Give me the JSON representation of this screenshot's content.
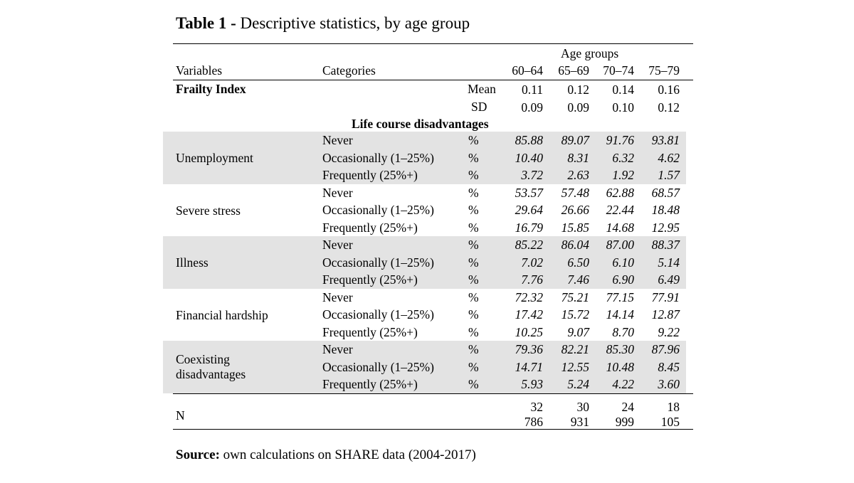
{
  "title": {
    "prefix": "Table 1 -",
    "text": " Descriptive statistics, by age group"
  },
  "header": {
    "group_label": "Age groups",
    "variables": "Variables",
    "categories": "Categories",
    "ages": [
      "60–64",
      "65–69",
      "70–74",
      "75–79"
    ]
  },
  "frailty": {
    "label": "Frailty Index",
    "mean_label": "Mean",
    "sd_label": "SD",
    "mean": [
      "0.11",
      "0.12",
      "0.14",
      "0.16"
    ],
    "sd": [
      "0.09",
      "0.09",
      "0.10",
      "0.12"
    ]
  },
  "section_label": "Life course disadvantages",
  "blocks": [
    {
      "name": "Unemployment",
      "rows": [
        {
          "cat": "Never",
          "unit": "%",
          "vals": [
            "85.88",
            "89.07",
            "91.76",
            "93.81"
          ]
        },
        {
          "cat": "Occasionally (1–25%)",
          "unit": "%",
          "vals": [
            "10.40",
            "8.31",
            "6.32",
            "4.62"
          ]
        },
        {
          "cat": "Frequently (25%+)",
          "unit": "%",
          "vals": [
            "3.72",
            "2.63",
            "1.92",
            "1.57"
          ]
        }
      ]
    },
    {
      "name": "Severe stress",
      "rows": [
        {
          "cat": "Never",
          "unit": "%",
          "vals": [
            "53.57",
            "57.48",
            "62.88",
            "68.57"
          ]
        },
        {
          "cat": "Occasionally (1–25%)",
          "unit": "%",
          "vals": [
            "29.64",
            "26.66",
            "22.44",
            "18.48"
          ]
        },
        {
          "cat": "Frequently (25%+)",
          "unit": "%",
          "vals": [
            "16.79",
            "15.85",
            "14.68",
            "12.95"
          ]
        }
      ]
    },
    {
      "name": "Illness",
      "rows": [
        {
          "cat": "Never",
          "unit": "%",
          "vals": [
            "85.22",
            "86.04",
            "87.00",
            "88.37"
          ]
        },
        {
          "cat": "Occasionally (1–25%)",
          "unit": "%",
          "vals": [
            "7.02",
            "6.50",
            "6.10",
            "5.14"
          ]
        },
        {
          "cat": "Frequently (25%+)",
          "unit": "%",
          "vals": [
            "7.76",
            "7.46",
            "6.90",
            "6.49"
          ]
        }
      ]
    },
    {
      "name": "Financial hardship",
      "rows": [
        {
          "cat": "Never",
          "unit": "%",
          "vals": [
            "72.32",
            "75.21",
            "77.15",
            "77.91"
          ]
        },
        {
          "cat": "Occasionally (1–25%)",
          "unit": "%",
          "vals": [
            "17.42",
            "15.72",
            "14.14",
            "12.87"
          ]
        },
        {
          "cat": "Frequently (25%+)",
          "unit": "%",
          "vals": [
            "10.25",
            "9.07",
            "8.70",
            "9.22"
          ]
        }
      ]
    },
    {
      "name_lines": [
        "Coexisting",
        "disadvantages"
      ],
      "rows": [
        {
          "cat": "Never",
          "unit": "%",
          "vals": [
            "79.36",
            "82.21",
            "85.30",
            "87.96"
          ]
        },
        {
          "cat": "Occasionally (1–25%)",
          "unit": "%",
          "vals": [
            "14.71",
            "12.55",
            "10.48",
            "8.45"
          ]
        },
        {
          "cat": "Frequently (25%+)",
          "unit": "%",
          "vals": [
            "5.93",
            "5.24",
            "4.22",
            "3.60"
          ]
        }
      ]
    }
  ],
  "n_row": {
    "label": "N",
    "top": [
      "32",
      "30",
      "24",
      "18"
    ],
    "bottom": [
      "786",
      "931",
      "999",
      "105"
    ]
  },
  "source": {
    "label": "Source:",
    "text": " own calculations on SHARE data (2004-2017)"
  }
}
